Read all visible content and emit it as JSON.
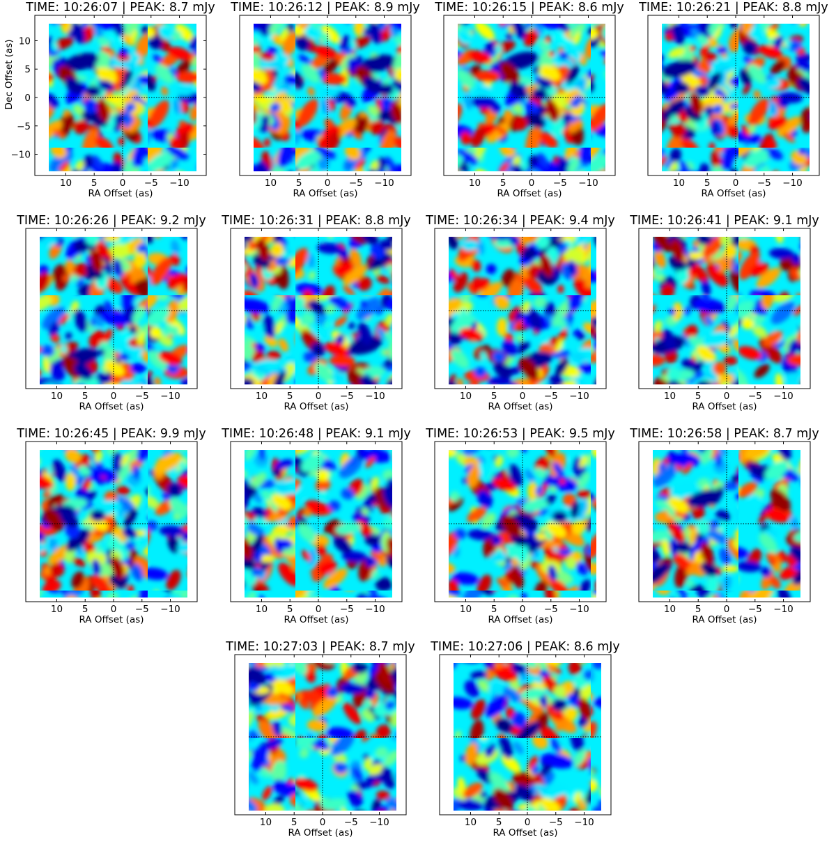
{
  "figure": {
    "ylabel": "Dec Offset (as)",
    "xlabel": "RA Offset (as)"
  },
  "chart_data": {
    "type": "heatmap",
    "colormap": "jet",
    "grid": false,
    "crosshair": "dotted lines at RA 0, Dec 0",
    "xlabel": "RA Offset (as)",
    "ylabel": "Dec Offset (as)",
    "x_range": [
      13,
      -13
    ],
    "y_range": [
      -13,
      13
    ],
    "x_axis_reversed": true,
    "x_ticks": [
      "10",
      "5",
      "0",
      "−5",
      "−10"
    ],
    "x_tick_values": [
      10,
      5,
      0,
      -5,
      -10
    ],
    "y_ticks": [
      "10",
      "5",
      "0",
      "−5",
      "−10"
    ],
    "y_tick_values": [
      10,
      5,
      0,
      -5,
      -10
    ],
    "peak_unit": "mJy",
    "panels": [
      {
        "title": "TIME: 10:26:07 | PEAK:   8.7 mJy",
        "time": "10:26:07",
        "peak": 8.7
      },
      {
        "title": "TIME: 10:26:12 | PEAK:   8.9 mJy",
        "time": "10:26:12",
        "peak": 8.9
      },
      {
        "title": "TIME: 10:26:15 | PEAK:   8.6 mJy",
        "time": "10:26:15",
        "peak": 8.6
      },
      {
        "title": "TIME: 10:26:21 | PEAK:   8.8 mJy",
        "time": "10:26:21",
        "peak": 8.8
      },
      {
        "title": "TIME: 10:26:26 | PEAK:   9.2 mJy",
        "time": "10:26:26",
        "peak": 9.2
      },
      {
        "title": "TIME: 10:26:31 | PEAK:   8.8 mJy",
        "time": "10:26:31",
        "peak": 8.8
      },
      {
        "title": "TIME: 10:26:34 | PEAK:   9.4 mJy",
        "time": "10:26:34",
        "peak": 9.4
      },
      {
        "title": "TIME: 10:26:41 | PEAK:   9.1 mJy",
        "time": "10:26:41",
        "peak": 9.1
      },
      {
        "title": "TIME: 10:26:45 | PEAK:   9.9 mJy",
        "time": "10:26:45",
        "peak": 9.9
      },
      {
        "title": "TIME: 10:26:48 | PEAK:   9.1 mJy",
        "time": "10:26:48",
        "peak": 9.1
      },
      {
        "title": "TIME: 10:26:53 | PEAK:   9.5 mJy",
        "time": "10:26:53",
        "peak": 9.5
      },
      {
        "title": "TIME: 10:26:58 | PEAK:   8.7 mJy",
        "time": "10:26:58",
        "peak": 8.7
      },
      {
        "title": "TIME: 10:27:03 | PEAK:   8.7 mJy",
        "time": "10:27:03",
        "peak": 8.7
      },
      {
        "title": "TIME: 10:27:06 | PEAK:   8.6 mJy",
        "time": "10:27:06",
        "peak": 8.6
      }
    ]
  }
}
